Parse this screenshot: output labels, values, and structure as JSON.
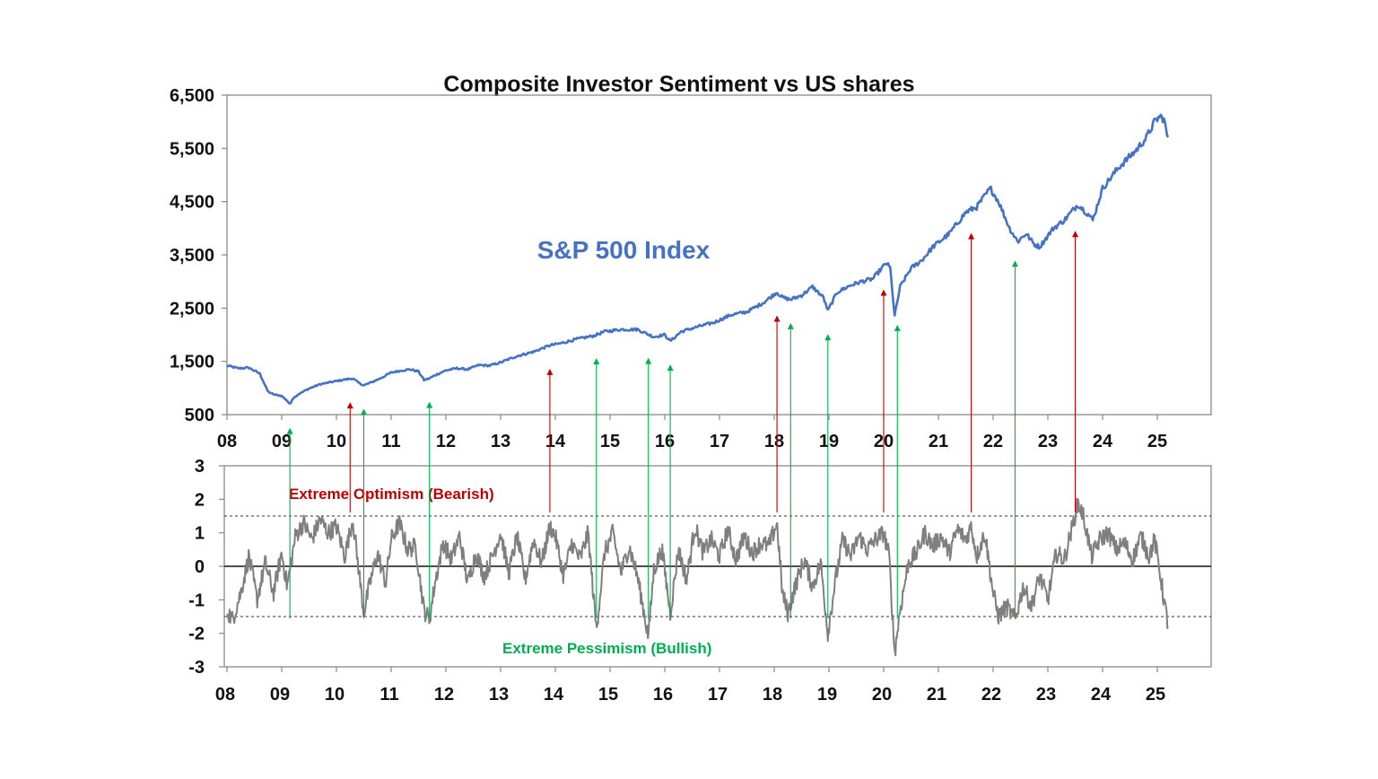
{
  "chart_data": [
    {
      "type": "line",
      "title": "Composite Investor Sentiment vs US shares",
      "series_label": "S&P 500 Index",
      "xlabel": "",
      "ylabel": "",
      "xlim": [
        2008.0,
        2026.0
      ],
      "ylim": [
        500,
        6500
      ],
      "yticks": [
        "6,500",
        "5,500",
        "4,500",
        "3,500",
        "2,500",
        "1,500",
        "500"
      ],
      "xticks": [
        "08",
        "09",
        "10",
        "11",
        "12",
        "13",
        "14",
        "15",
        "16",
        "17",
        "18",
        "19",
        "20",
        "21",
        "22",
        "23",
        "24",
        "25"
      ],
      "grid": false,
      "color": "#4472C4",
      "series": [
        {
          "x": [
            2008.0,
            2008.2,
            2008.4,
            2008.6,
            2008.75,
            2008.85,
            2009.0,
            2009.1,
            2009.15,
            2009.2,
            2009.3,
            2009.5,
            2009.7,
            2009.9,
            2010.1,
            2010.3,
            2010.4,
            2010.5,
            2010.6,
            2010.8,
            2011.0,
            2011.2,
            2011.35,
            2011.5,
            2011.6,
            2011.7,
            2011.8,
            2012.0,
            2012.2,
            2012.4,
            2012.6,
            2012.8,
            2013.0,
            2013.3,
            2013.6,
            2013.9,
            2014.1,
            2014.4,
            2014.7,
            2014.9,
            2015.2,
            2015.5,
            2015.65,
            2015.8,
            2016.0,
            2016.1,
            2016.3,
            2016.6,
            2016.9,
            2017.2,
            2017.5,
            2017.8,
            2018.05,
            2018.15,
            2018.3,
            2018.5,
            2018.7,
            2018.9,
            2018.98,
            2019.15,
            2019.4,
            2019.6,
            2019.8,
            2020.05,
            2020.12,
            2020.2,
            2020.3,
            2020.5,
            2020.7,
            2020.9,
            2021.2,
            2021.5,
            2021.7,
            2021.95,
            2022.1,
            2022.3,
            2022.45,
            2022.6,
            2022.75,
            2022.85,
            2023.1,
            2023.3,
            2023.55,
            2023.75,
            2023.82,
            2024.0,
            2024.3,
            2024.6,
            2024.8,
            2024.95,
            2025.05,
            2025.12,
            2025.2
          ],
          "values": [
            1420,
            1370,
            1380,
            1270,
            930,
            880,
            850,
            760,
            690,
            800,
            880,
            990,
            1070,
            1110,
            1150,
            1180,
            1100,
            1050,
            1090,
            1180,
            1290,
            1330,
            1350,
            1310,
            1150,
            1180,
            1240,
            1330,
            1370,
            1350,
            1430,
            1420,
            1480,
            1600,
            1680,
            1800,
            1840,
            1920,
            1980,
            2060,
            2100,
            2100,
            2030,
            1960,
            2000,
            1880,
            2060,
            2150,
            2230,
            2370,
            2430,
            2600,
            2800,
            2700,
            2660,
            2740,
            2900,
            2700,
            2450,
            2800,
            2930,
            3000,
            3050,
            3350,
            3250,
            2350,
            2900,
            3250,
            3400,
            3650,
            3900,
            4300,
            4400,
            4750,
            4500,
            4000,
            3750,
            3900,
            3700,
            3650,
            4000,
            4150,
            4450,
            4250,
            4150,
            4750,
            5150,
            5450,
            5700,
            6000,
            6100,
            6050,
            5650
          ]
        }
      ],
      "markers": {
        "bearish": {
          "color": "#C00000",
          "x": [
            2010.25,
            2013.9,
            2018.05,
            2020.0,
            2021.6,
            2023.5
          ]
        },
        "bullish": {
          "color": "#00B050",
          "x": [
            2009.15,
            2010.5,
            2011.7,
            2014.75,
            2015.7,
            2016.1,
            2018.3,
            2018.98,
            2020.25,
            2022.4
          ]
        }
      }
    },
    {
      "type": "line",
      "title": "",
      "xlabel": "",
      "ylabel": "",
      "xlim": [
        2008.0,
        2026.0
      ],
      "ylim": [
        -3,
        3
      ],
      "yticks": [
        "3",
        "2",
        "1",
        "0",
        "-1",
        "-2",
        "-3"
      ],
      "xticks": [
        "08",
        "09",
        "10",
        "11",
        "12",
        "13",
        "14",
        "15",
        "16",
        "17",
        "18",
        "19",
        "20",
        "21",
        "22",
        "23",
        "24",
        "25"
      ],
      "grid": false,
      "color": "#7F7F7F",
      "thresholds": [
        1.5,
        -1.5
      ],
      "annotations": {
        "optimism": "Extreme Optimism (Bearish)",
        "optimism_color": "#C00000",
        "pessimism": "Extreme Pessimism (Bullish)",
        "pessimism_color": "#00B050"
      },
      "series": [
        {
          "x": [
            2008.0,
            2008.1,
            2008.25,
            2008.4,
            2008.55,
            2008.7,
            2008.85,
            2009.0,
            2009.1,
            2009.25,
            2009.4,
            2009.55,
            2009.7,
            2009.85,
            2010.0,
            2010.15,
            2010.3,
            2010.45,
            2010.5,
            2010.6,
            2010.75,
            2010.9,
            2011.0,
            2011.15,
            2011.3,
            2011.45,
            2011.6,
            2011.7,
            2011.8,
            2011.95,
            2012.1,
            2012.25,
            2012.4,
            2012.55,
            2012.7,
            2012.85,
            2013.0,
            2013.15,
            2013.3,
            2013.45,
            2013.6,
            2013.75,
            2013.9,
            2014.0,
            2014.15,
            2014.3,
            2014.45,
            2014.6,
            2014.75,
            2014.9,
            2015.05,
            2015.2,
            2015.35,
            2015.5,
            2015.6,
            2015.7,
            2015.8,
            2015.95,
            2016.1,
            2016.25,
            2016.4,
            2016.55,
            2016.7,
            2016.85,
            2017.0,
            2017.15,
            2017.3,
            2017.45,
            2017.6,
            2017.75,
            2017.9,
            2018.05,
            2018.15,
            2018.25,
            2018.4,
            2018.55,
            2018.7,
            2018.85,
            2018.98,
            2019.1,
            2019.25,
            2019.4,
            2019.55,
            2019.7,
            2019.85,
            2020.0,
            2020.1,
            2020.2,
            2020.3,
            2020.45,
            2020.6,
            2020.75,
            2020.9,
            2021.05,
            2021.2,
            2021.35,
            2021.5,
            2021.6,
            2021.7,
            2021.85,
            2022.0,
            2022.1,
            2022.25,
            2022.4,
            2022.55,
            2022.7,
            2022.85,
            2023.0,
            2023.15,
            2023.3,
            2023.45,
            2023.55,
            2023.65,
            2023.8,
            2023.95,
            2024.1,
            2024.25,
            2024.4,
            2024.55,
            2024.7,
            2024.85,
            2024.95,
            2025.05,
            2025.12,
            2025.2
          ],
          "values": [
            -1.3,
            -1.6,
            -0.8,
            0.3,
            -1.0,
            0.1,
            -0.8,
            0.4,
            -0.6,
            0.9,
            1.3,
            0.8,
            1.4,
            1.0,
            1.2,
            0.3,
            1.4,
            -0.7,
            -1.4,
            -0.6,
            0.4,
            -0.5,
            0.8,
            1.3,
            0.5,
            0.6,
            -1.3,
            -1.6,
            -0.5,
            0.7,
            0.2,
            0.9,
            -0.5,
            0.4,
            -0.3,
            0.3,
            1.0,
            -0.2,
            0.9,
            -0.4,
            0.8,
            0.1,
            1.2,
            0.9,
            -0.3,
            0.7,
            0.2,
            1.0,
            -1.9,
            0.4,
            1.0,
            -0.2,
            0.6,
            -0.3,
            -1.2,
            -2.1,
            -0.1,
            0.5,
            -1.4,
            0.5,
            -0.4,
            1.2,
            0.4,
            0.8,
            0.3,
            1.1,
            0.2,
            0.9,
            0.4,
            0.7,
            0.6,
            1.3,
            -0.8,
            -1.4,
            -0.5,
            0.2,
            -0.6,
            0.1,
            -2.0,
            -0.6,
            0.8,
            0.3,
            0.9,
            0.5,
            0.8,
            1.0,
            0.3,
            -2.6,
            -1.3,
            0.1,
            0.4,
            1.0,
            0.6,
            0.9,
            0.4,
            1.1,
            0.8,
            1.2,
            0.3,
            1.0,
            -0.8,
            -1.5,
            -1.2,
            -1.6,
            -0.6,
            -1.2,
            -0.3,
            -1.0,
            0.4,
            0.2,
            1.2,
            1.9,
            1.5,
            0.3,
            0.8,
            1.0,
            0.5,
            0.7,
            0.2,
            0.9,
            0.3,
            0.8,
            -0.2,
            -1.0,
            -1.8
          ]
        }
      ]
    }
  ]
}
